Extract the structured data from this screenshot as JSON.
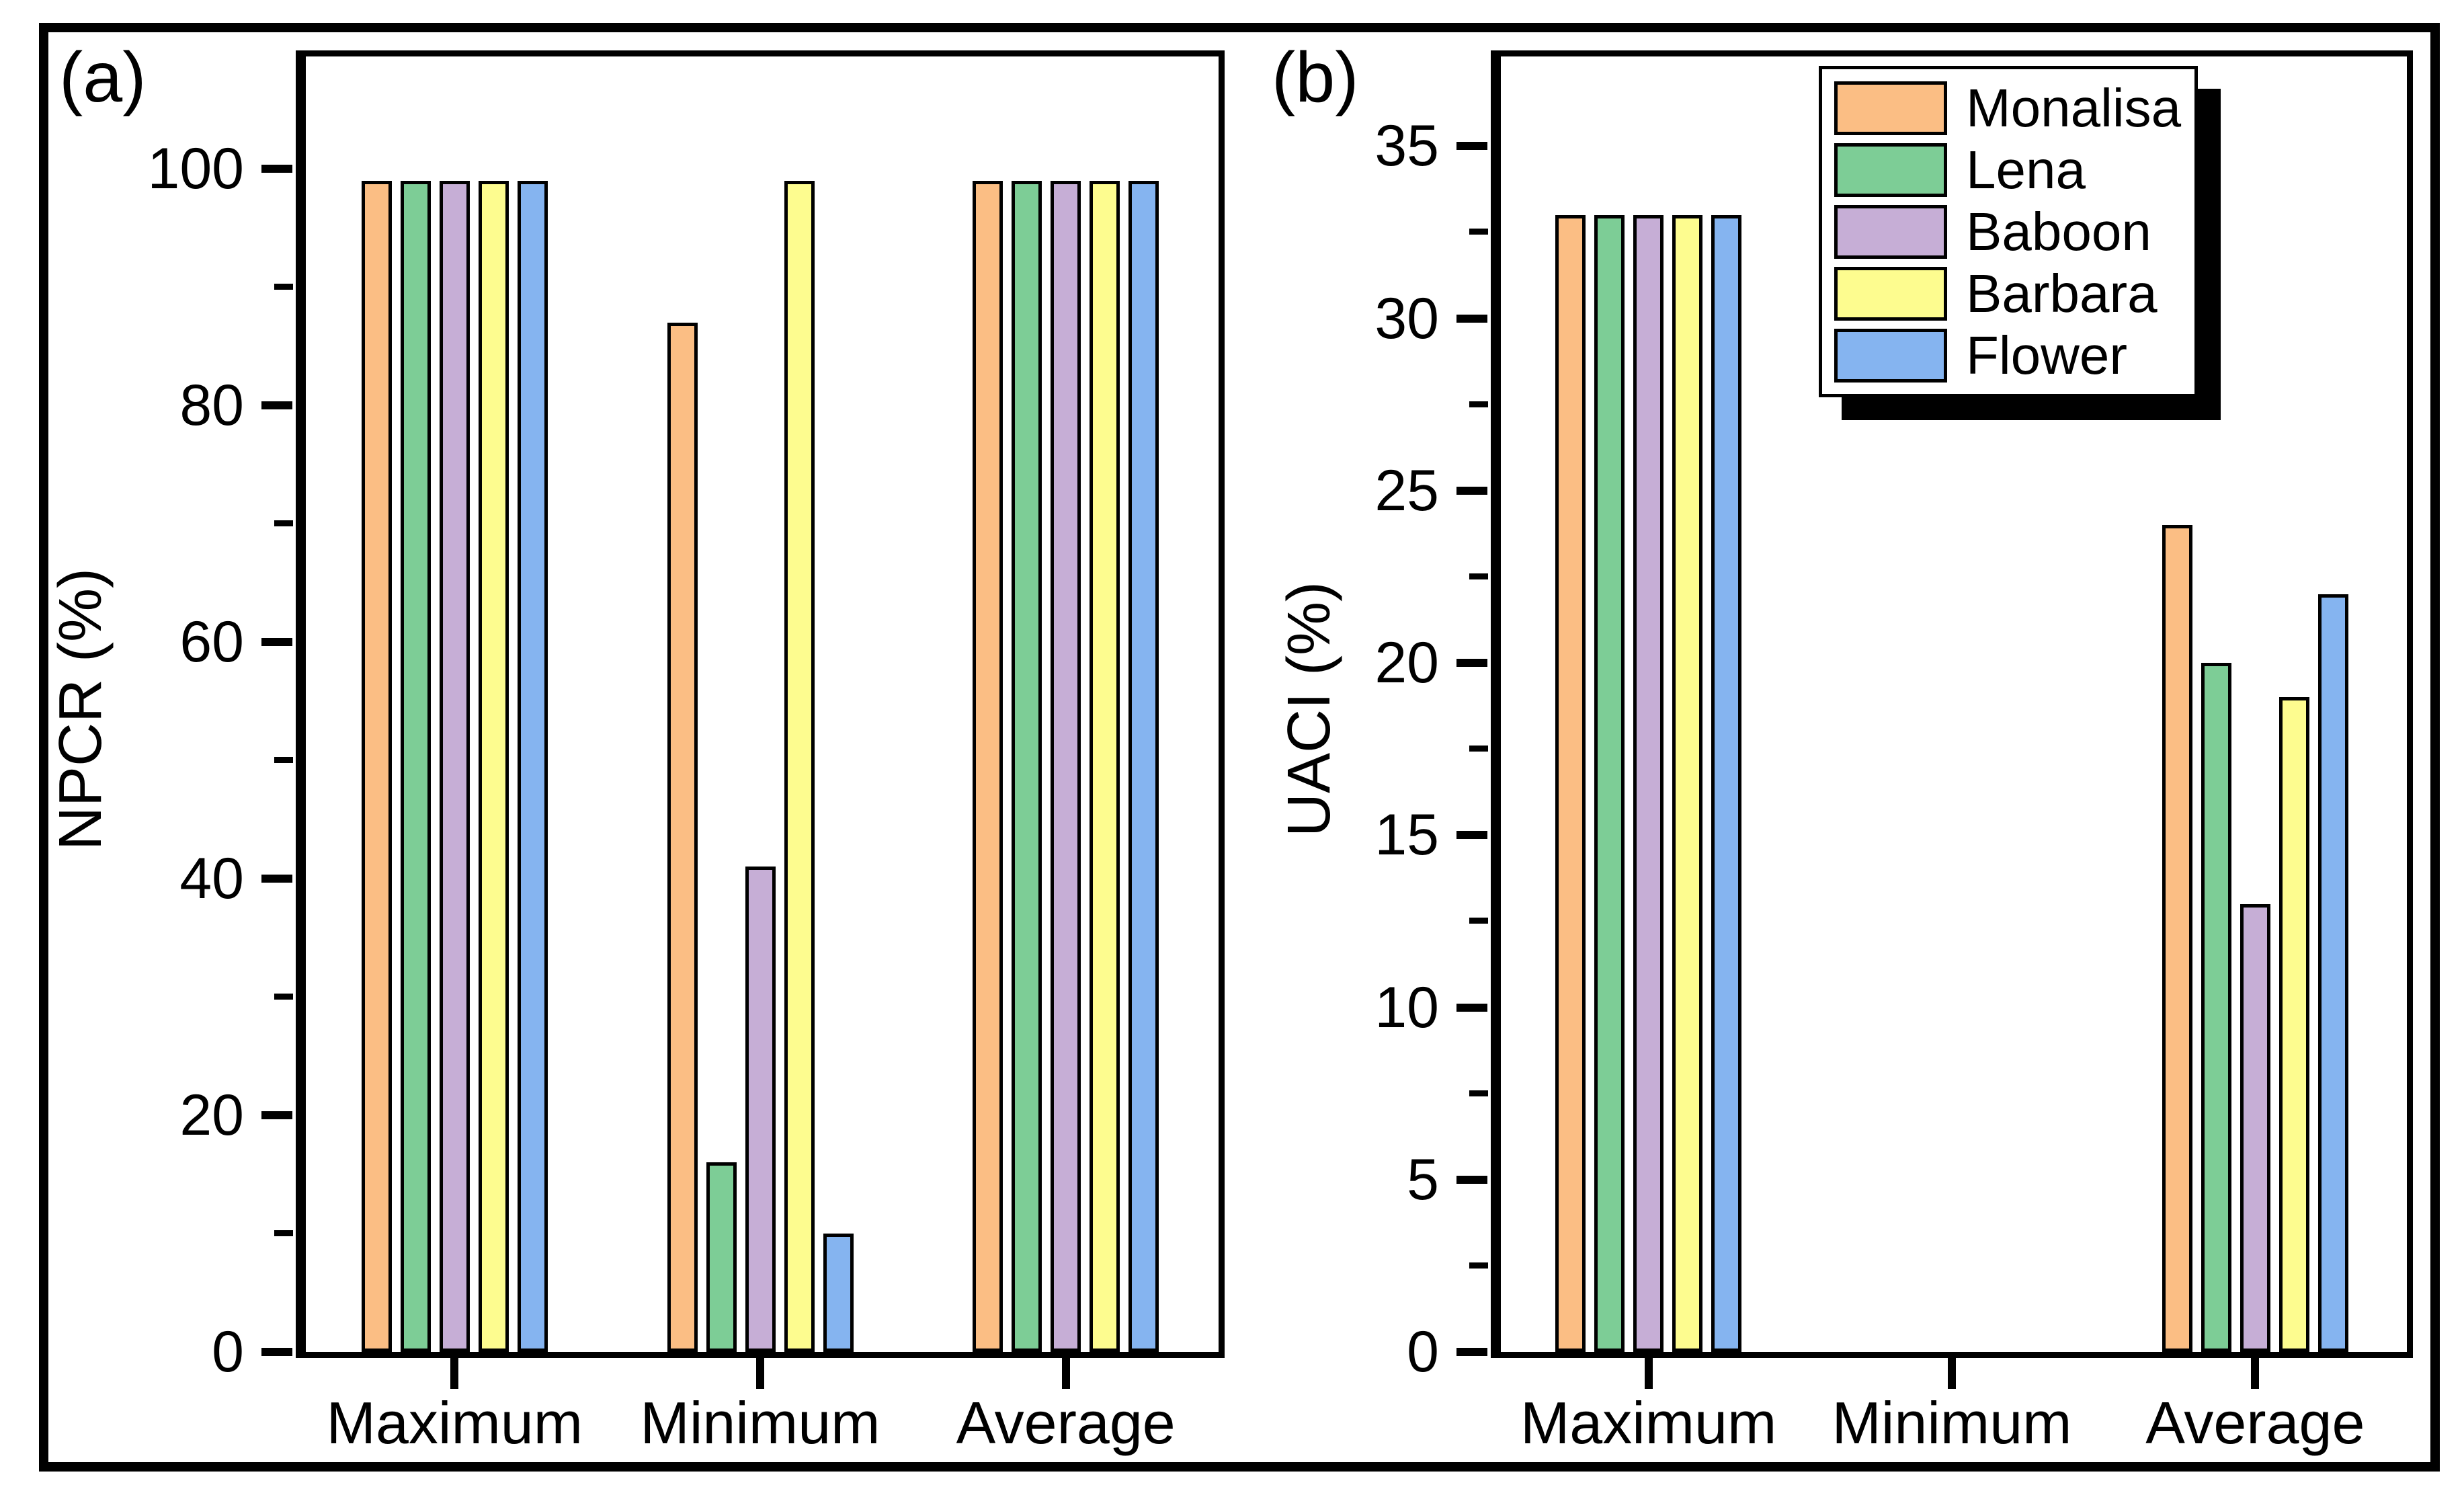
{
  "figure": {
    "panel_a_label": "(a)",
    "panel_b_label": "(b)"
  },
  "legend": {
    "position": "top-right-of-panel-b",
    "items": [
      {
        "label": "Monalisa",
        "color": "#FBBE84"
      },
      {
        "label": "Lena",
        "color": "#7DCD96"
      },
      {
        "label": "Baboon",
        "color": "#C6AED6"
      },
      {
        "label": "Barbara",
        "color": "#FDFC8F"
      },
      {
        "label": "Flower",
        "color": "#85B4F0"
      }
    ]
  },
  "colors": {
    "bar_edge": "#000000",
    "axis": "#000000",
    "background": "#ffffff"
  },
  "chart_data": [
    {
      "type": "bar",
      "panel": "a",
      "ylabel": "NPCR (%)",
      "categories": [
        "Maximum",
        "Minimum",
        "Average"
      ],
      "series": [
        {
          "name": "Monalisa",
          "color": "#FBBE84",
          "values": [
            99,
            87,
            99
          ]
        },
        {
          "name": "Lena",
          "color": "#7DCD96",
          "values": [
            99,
            16,
            99
          ]
        },
        {
          "name": "Baboon",
          "color": "#C6AED6",
          "values": [
            99,
            41,
            99
          ]
        },
        {
          "name": "Barbara",
          "color": "#FDFC8F",
          "values": [
            99,
            99,
            99
          ]
        },
        {
          "name": "Flower",
          "color": "#85B4F0",
          "values": [
            99,
            10,
            99
          ]
        }
      ],
      "ylim": [
        0,
        109.5
      ],
      "yticks": [
        0,
        20,
        40,
        60,
        80,
        100
      ],
      "minor_step": 10,
      "grid": false,
      "legend_position": "none"
    },
    {
      "type": "bar",
      "panel": "b",
      "ylabel": "UACI (%)",
      "categories": [
        "Maximum",
        "Minimum",
        "Average"
      ],
      "series": [
        {
          "name": "Monalisa",
          "color": "#FBBE84",
          "values": [
            33,
            0,
            24
          ]
        },
        {
          "name": "Lena",
          "color": "#7DCD96",
          "values": [
            33,
            0,
            20
          ]
        },
        {
          "name": "Baboon",
          "color": "#C6AED6",
          "values": [
            33,
            0,
            13
          ]
        },
        {
          "name": "Barbara",
          "color": "#FDFC8F",
          "values": [
            33,
            0,
            19
          ]
        },
        {
          "name": "Flower",
          "color": "#85B4F0",
          "values": [
            33,
            0,
            22
          ]
        }
      ],
      "ylim": [
        0,
        37.6
      ],
      "yticks": [
        0,
        5,
        10,
        15,
        20,
        25,
        30,
        35
      ],
      "minor_step": 2.5,
      "grid": false,
      "legend_position": "top-right"
    }
  ]
}
